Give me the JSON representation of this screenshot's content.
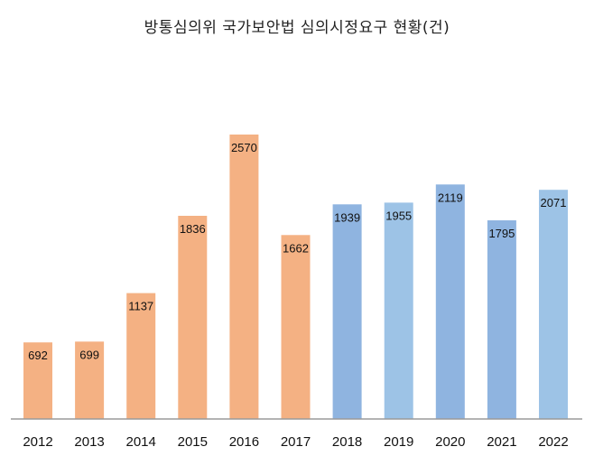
{
  "chart_data": {
    "type": "bar",
    "title": "방통심의위 국가보안법 심의시정요구 현황(건)",
    "categories": [
      "2012",
      "2013",
      "2014",
      "2015",
      "2016",
      "2017",
      "2018",
      "2019",
      "2020",
      "2021",
      "2022"
    ],
    "values": [
      692,
      699,
      1137,
      1836,
      2570,
      1662,
      1939,
      1955,
      2119,
      1795,
      2071
    ],
    "bar_colors": [
      "#F4B183",
      "#F4B183",
      "#F4B183",
      "#F4B183",
      "#F4B183",
      "#F4B183",
      "#8FB4E0",
      "#9DC3E6",
      "#8FB4E0",
      "#8FB4E0",
      "#9DC3E6"
    ],
    "ylim": [
      0,
      2700
    ],
    "data_labels": true,
    "grid": false,
    "legend": "none"
  }
}
